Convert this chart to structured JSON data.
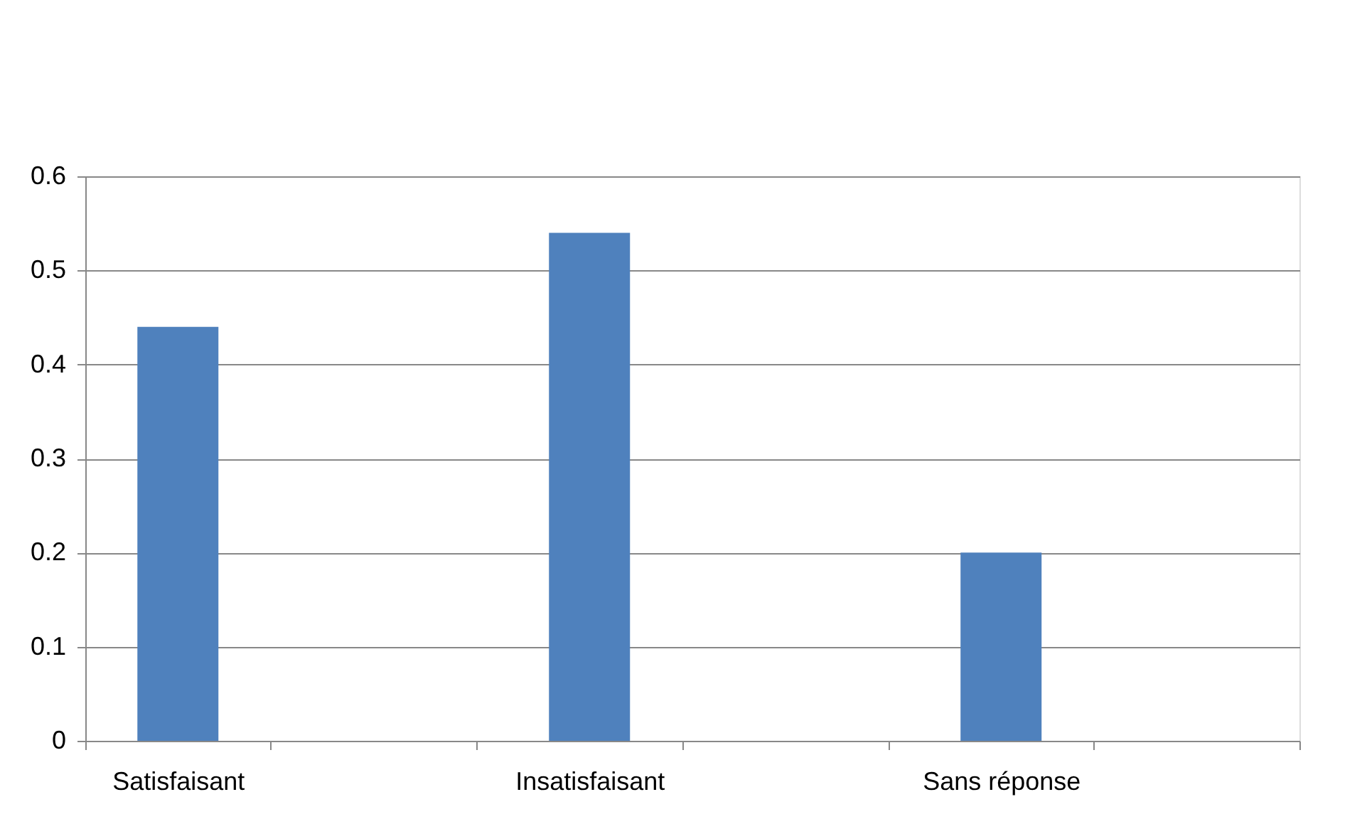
{
  "chart_data": {
    "type": "bar",
    "categories": [
      "Satisfaisant",
      null,
      "Insatisfaisant",
      null,
      "Sans réponse",
      null
    ],
    "values": [
      0.44,
      null,
      0.54,
      null,
      0.2,
      null
    ],
    "color": "#4f81bd",
    "ylim": [
      0,
      0.6
    ],
    "yticks": [
      0,
      0.1,
      0.2,
      0.3,
      0.4,
      0.5,
      0.6
    ],
    "grid": "y"
  }
}
